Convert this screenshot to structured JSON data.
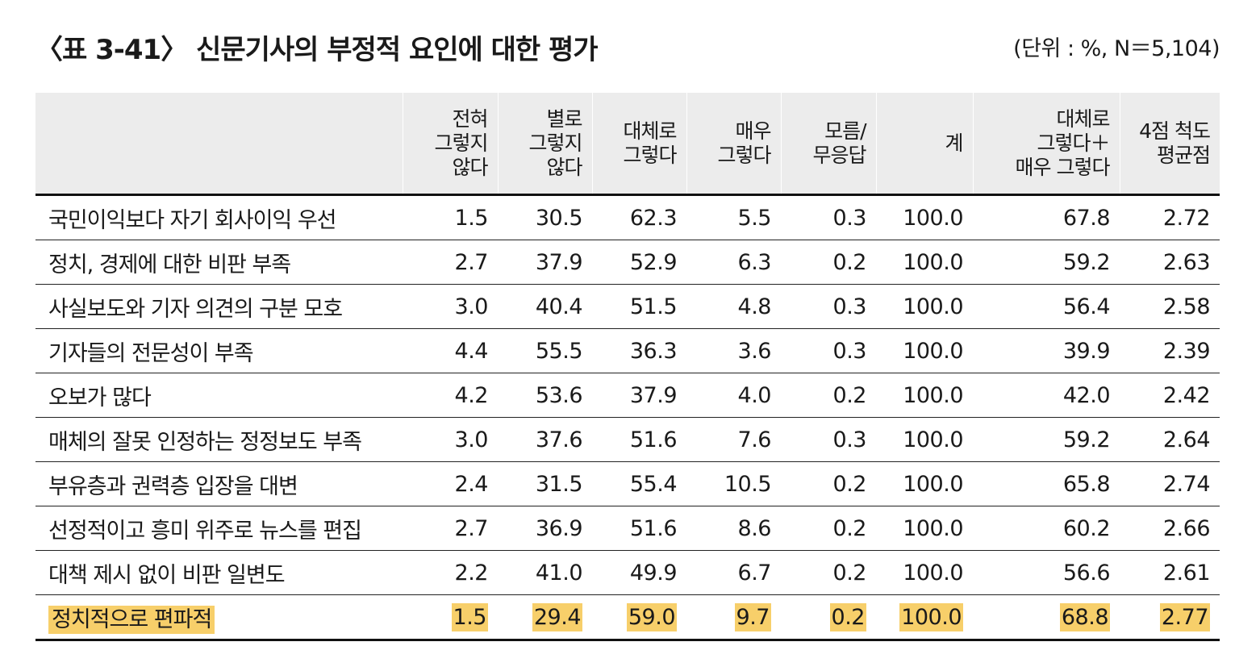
{
  "title": "〈표 3-41〉 신문기사의 부정적 요인에 대한 평가",
  "unit": "(단위 : %, N＝5,104)",
  "colors": {
    "header_bg": "#ececec",
    "highlight": "#f7cf6a"
  },
  "headers": [
    "",
    "전혀\n그렇지\n않다",
    "별로\n그렇지\n않다",
    "대체로\n그렇다",
    "매우\n그렇다",
    "모름/\n무응답",
    "계",
    "대체로\n그렇다＋\n매우 그렇다",
    "4점 척도\n평균점"
  ],
  "rows": [
    {
      "label": "국민이익보다 자기 회사이익 우선",
      "values": [
        "1.5",
        "30.5",
        "62.3",
        "5.5",
        "0.3",
        "100.0",
        "67.8",
        "2.72"
      ]
    },
    {
      "label": "정치, 경제에 대한 비판 부족",
      "values": [
        "2.7",
        "37.9",
        "52.9",
        "6.3",
        "0.2",
        "100.0",
        "59.2",
        "2.63"
      ]
    },
    {
      "label": "사실보도와 기자 의견의 구분 모호",
      "values": [
        "3.0",
        "40.4",
        "51.5",
        "4.8",
        "0.3",
        "100.0",
        "56.4",
        "2.58"
      ]
    },
    {
      "label": "기자들의 전문성이 부족",
      "values": [
        "4.4",
        "55.5",
        "36.3",
        "3.6",
        "0.3",
        "100.0",
        "39.9",
        "2.39"
      ]
    },
    {
      "label": "오보가 많다",
      "values": [
        "4.2",
        "53.6",
        "37.9",
        "4.0",
        "0.2",
        "100.0",
        "42.0",
        "2.42"
      ]
    },
    {
      "label": "매체의 잘못 인정하는 정정보도 부족",
      "values": [
        "3.0",
        "37.6",
        "51.6",
        "7.6",
        "0.3",
        "100.0",
        "59.2",
        "2.64"
      ]
    },
    {
      "label": "부유층과 권력층 입장을 대변",
      "values": [
        "2.4",
        "31.5",
        "55.4",
        "10.5",
        "0.2",
        "100.0",
        "65.8",
        "2.74"
      ]
    },
    {
      "label": "선정적이고 흥미 위주로 뉴스를 편집",
      "values": [
        "2.7",
        "36.9",
        "51.6",
        "8.6",
        "0.2",
        "100.0",
        "60.2",
        "2.66"
      ]
    },
    {
      "label": "대책 제시 없이 비판 일변도",
      "values": [
        "2.2",
        "41.0",
        "49.9",
        "6.7",
        "0.2",
        "100.0",
        "56.6",
        "2.61"
      ]
    },
    {
      "label": "정치적으로 편파적",
      "values": [
        "1.5",
        "29.4",
        "59.0",
        "9.7",
        "0.2",
        "100.0",
        "68.8",
        "2.77"
      ],
      "highlight": true
    }
  ]
}
